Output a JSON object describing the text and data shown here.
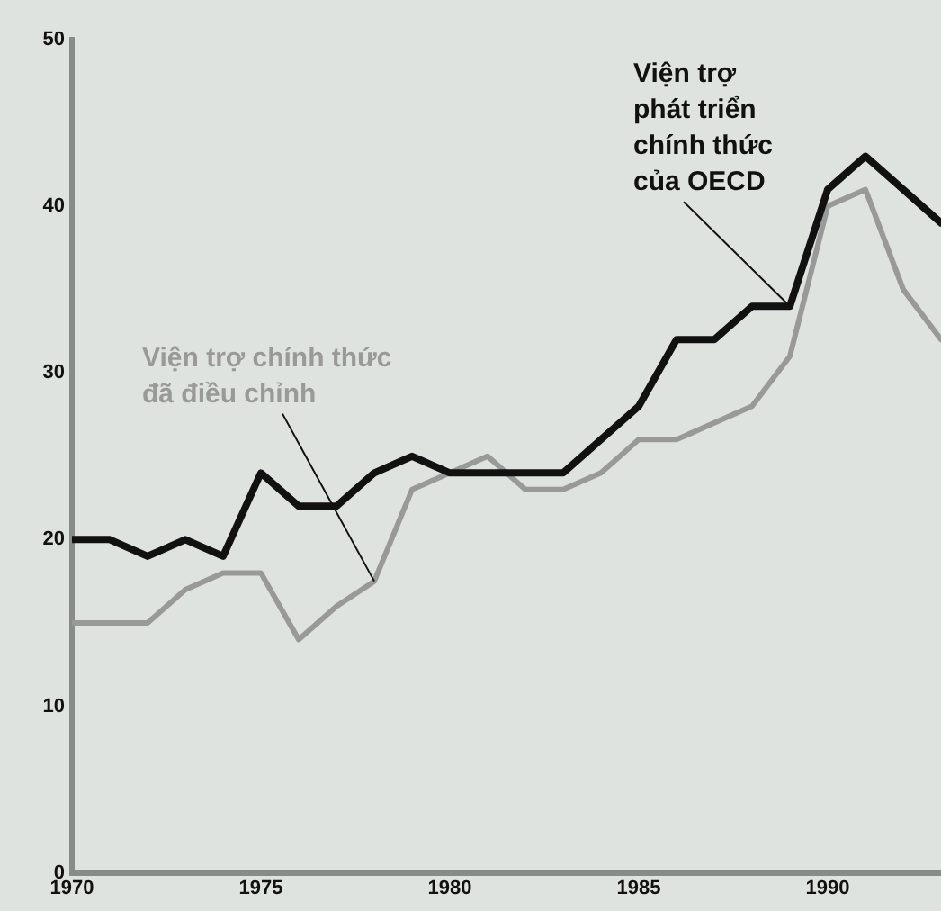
{
  "chart_data": {
    "type": "line",
    "x": [
      1970,
      1971,
      1972,
      1973,
      1974,
      1975,
      1976,
      1977,
      1978,
      1979,
      1980,
      1981,
      1982,
      1983,
      1984,
      1985,
      1986,
      1987,
      1988,
      1989,
      1990,
      1991,
      1992,
      1993
    ],
    "series": [
      {
        "name": "Viện trợ phát triển chính thức của OECD",
        "color": "#111111",
        "values": [
          20,
          20,
          19,
          20,
          19,
          24,
          22,
          22,
          24,
          25,
          24,
          24,
          24,
          24,
          26,
          28,
          32,
          32,
          34,
          34,
          41,
          43,
          41,
          39
        ]
      },
      {
        "name": "Viện trợ chính thức đã điều chỉnh",
        "color": "#999999",
        "values": [
          15,
          15,
          15,
          17,
          18,
          18,
          14,
          16,
          17.5,
          23,
          24,
          25,
          23,
          23,
          24,
          26,
          26,
          27,
          28,
          31,
          40,
          41,
          35,
          32
        ]
      }
    ],
    "xlim": [
      1970,
      1993
    ],
    "xticks": [
      1970,
      1975,
      1980,
      1985,
      1990
    ],
    "ylim": [
      0,
      50
    ],
    "yticks": [
      0,
      10,
      20,
      30,
      40,
      50
    ],
    "grid": false,
    "legend": false,
    "marker": "none",
    "line_style": "solid"
  }
}
